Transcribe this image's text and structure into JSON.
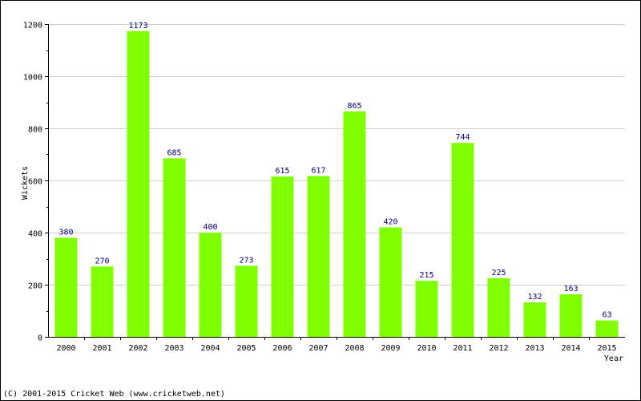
{
  "chart_data": {
    "type": "bar",
    "categories": [
      "2000",
      "2001",
      "2002",
      "2003",
      "2004",
      "2005",
      "2006",
      "2007",
      "2008",
      "2009",
      "2010",
      "2011",
      "2012",
      "2013",
      "2014",
      "2015"
    ],
    "values": [
      380,
      270,
      1173,
      685,
      400,
      273,
      615,
      617,
      865,
      420,
      215,
      744,
      225,
      132,
      163,
      63
    ],
    "ylabel": "Wickets",
    "xlabel": "Year",
    "ylim": [
      0,
      1200
    ],
    "yticks": [
      0,
      200,
      400,
      600,
      800,
      1000,
      1200
    ],
    "grid": true,
    "bar_color": "#80ff00",
    "data_label_color": "#000080",
    "gridline_color": "#d0d0d0"
  },
  "footer": {
    "copyright": "(C) 2001-2015 Cricket Web (www.cricketweb.net)"
  }
}
